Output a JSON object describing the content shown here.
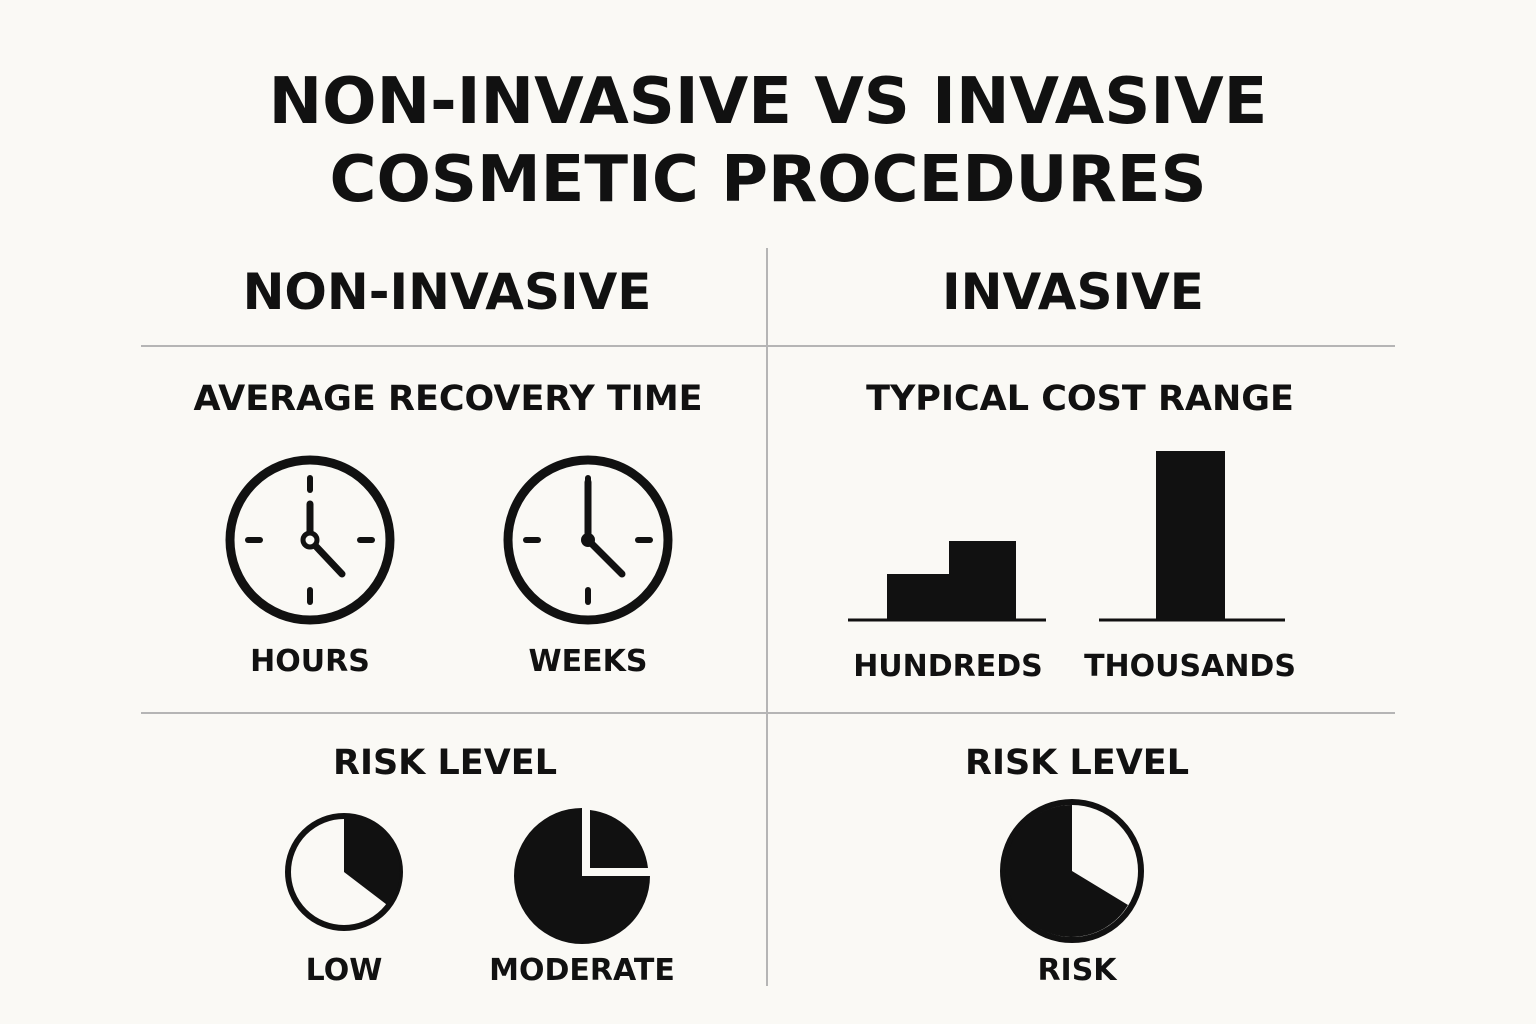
{
  "title": {
    "line1": "NON-INVASIVE VS INVASIVE",
    "line2": "COSMETIC PROCEDURES"
  },
  "columns": {
    "left": {
      "heading": "NON-INVASIVE"
    },
    "right": {
      "heading": "INVASIVE"
    }
  },
  "recovery": {
    "heading": "AVERAGE RECOVERY TIME",
    "items": [
      {
        "label": "HOURS",
        "icon": "clock-icon"
      },
      {
        "label": "WEEKS",
        "icon": "clock-icon"
      }
    ]
  },
  "cost": {
    "heading": "TYPICAL COST RANGE",
    "items": [
      {
        "label": "HUNDREDS",
        "icon": "stepped-bar-icon"
      },
      {
        "label": "THOUSANDS",
        "icon": "tall-bar-icon"
      }
    ]
  },
  "risk_left": {
    "heading": "RISK LEVEL",
    "items": [
      {
        "label": "LOW",
        "icon": "pie-low-icon",
        "filled_fraction": 0.34
      },
      {
        "label": "MODERATE",
        "icon": "pie-moderate-icon",
        "filled_fraction": 0.75
      }
    ]
  },
  "risk_right": {
    "heading": "RISK LEVEL",
    "items": [
      {
        "label": "RISK",
        "icon": "pie-risk-icon",
        "filled_fraction": 0.66
      }
    ]
  },
  "colors": {
    "background": "#faf9f5",
    "ink": "#111111",
    "divider": "#b5b5b5"
  }
}
